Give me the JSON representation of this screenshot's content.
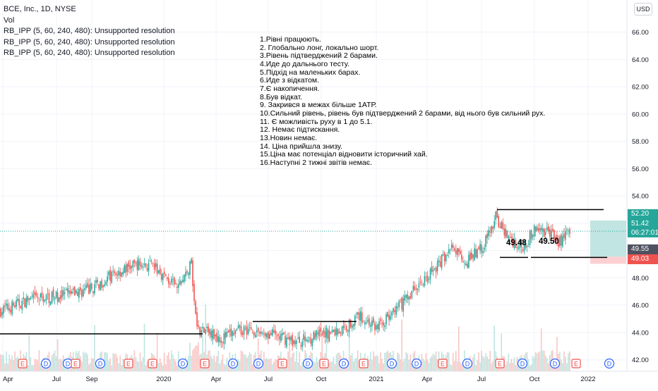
{
  "header": {
    "title": "BCE, Inc., 1D, NYSE",
    "vol_label": "Vol",
    "indicators": [
      "RB_IPP (5, 60, 240, 480): Unsupported resolution",
      "RB_IPP (5, 60, 240, 480): Unsupported resolution",
      "RB_IPP (5, 60, 240, 480): Unsupported resolution"
    ],
    "currency": "USD"
  },
  "notes": [
    "1.Рівні працюють.",
    "2. Глобально лонг, локально шорт.",
    "3.Рівень підтверджений 2 барами.",
    "4.Иде до дальнього тесту.",
    "5.Підхід на маленьких барах.",
    "6.Иде з відкатом.",
    "7.Є накопичення.",
    "8.Був відкат.",
    "9. Закрився в межах більше 1АТР.",
    "10.Сильний рівень, рівень був підтверджений 2 барами, від нього був сильний рух.",
    "11. Є можливість руху в 1 до 5.1.",
    "12. Немає підтискання.",
    "13.Новин немає.",
    "14. Ціна прийшла знизу.",
    "15.Ціна має потенціал відновити історичний хай.",
    "16.Наступні 2 тижні звітів немає."
  ],
  "price_tags": {
    "target": "52.20",
    "current": "51.42",
    "countdown": "06:27:01",
    "entry": "49.55",
    "stop": "49.03"
  },
  "level_labels": [
    "49.48",
    "49.50"
  ],
  "colors": {
    "up": "#26a69a",
    "down": "#ef5350",
    "target_zone": "#b2dfdb",
    "stop_zone": "#fccbcd",
    "earnings": "#ef5350",
    "dividend": "#2962ff",
    "line": "#000000"
  },
  "chart_data": {
    "type": "candlestick",
    "y_axis": {
      "ticks": [
        42,
        44,
        46,
        48,
        50,
        52,
        54,
        56,
        58,
        60,
        62,
        64,
        66
      ],
      "range": [
        40.8,
        66.7
      ]
    },
    "x_axis": {
      "ticks": [
        "Apr",
        "Jul",
        "Sep",
        "2020",
        "Apr",
        "Jul",
        "Oct",
        "2021",
        "Apr",
        "Jul",
        "Oct",
        "2022"
      ]
    },
    "trend_points": [
      {
        "t": 0,
        "p": 45.6
      },
      {
        "t": 0.05,
        "p": 46.4
      },
      {
        "t": 0.11,
        "p": 46.7
      },
      {
        "t": 0.16,
        "p": 47.2
      },
      {
        "t": 0.2,
        "p": 48.3
      },
      {
        "t": 0.24,
        "p": 49.0
      },
      {
        "t": 0.27,
        "p": 48.8
      },
      {
        "t": 0.31,
        "p": 47.2
      },
      {
        "t": 0.335,
        "p": 49.0
      },
      {
        "t": 0.345,
        "p": 44.3
      },
      {
        "t": 0.39,
        "p": 43.6
      },
      {
        "t": 0.43,
        "p": 44.3
      },
      {
        "t": 0.47,
        "p": 43.9
      },
      {
        "t": 0.52,
        "p": 43.3
      },
      {
        "t": 0.56,
        "p": 43.8
      },
      {
        "t": 0.6,
        "p": 44.2
      },
      {
        "t": 0.63,
        "p": 45.2
      },
      {
        "t": 0.66,
        "p": 44.4
      },
      {
        "t": 0.69,
        "p": 45.4
      },
      {
        "t": 0.73,
        "p": 47.3
      },
      {
        "t": 0.76,
        "p": 48.5
      },
      {
        "t": 0.79,
        "p": 50.2
      },
      {
        "t": 0.82,
        "p": 49.2
      },
      {
        "t": 0.85,
        "p": 50.5
      },
      {
        "t": 0.87,
        "p": 52.4
      },
      {
        "t": 0.89,
        "p": 51.1
      },
      {
        "t": 0.915,
        "p": 50.2
      },
      {
        "t": 0.94,
        "p": 51.6
      },
      {
        "t": 0.965,
        "p": 51.3
      },
      {
        "t": 0.98,
        "p": 50.6
      },
      {
        "t": 1,
        "p": 51.42
      }
    ],
    "levels": [
      {
        "price": 43.9,
        "from": "Mar 2019",
        "to": "Mar 2020"
      },
      {
        "price": 44.8,
        "from": "Jun 2020",
        "to": "Dec 2020"
      },
      {
        "price": 53.0,
        "from": "Aug 2021",
        "to": "Dec 2021"
      },
      {
        "price": 49.5,
        "from": "Aug 2021",
        "to": "Dec 2021"
      }
    ],
    "position": {
      "entry": 49.55,
      "target": 52.2,
      "stop": 49.03
    },
    "event_markers": [
      "E",
      "D",
      "D",
      "E",
      "D",
      "E",
      "E",
      "D",
      "E",
      "D",
      "D",
      "E",
      "D",
      "E",
      "D",
      "E",
      "D",
      "D",
      "E",
      "D",
      "E",
      "D",
      "D",
      "E",
      "D",
      "E"
    ]
  }
}
